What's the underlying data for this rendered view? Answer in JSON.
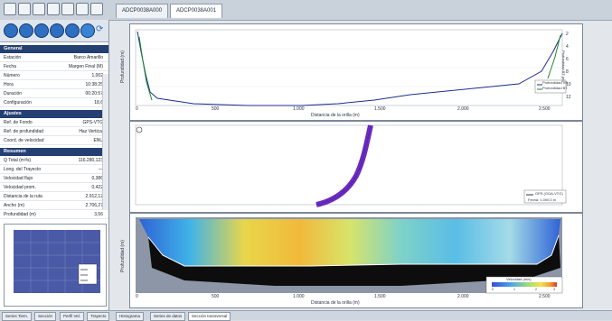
{
  "tabs": [
    {
      "label": "ADCP0038A000"
    },
    {
      "label": "ADCP0038A001"
    }
  ],
  "sidebar": {
    "sections": [
      {
        "title": "General",
        "rows": [
          {
            "k": "Estación",
            "v": "Barco Amarillo"
          },
          {
            "k": "Fecha",
            "v": "Margen Final (M)"
          },
          {
            "k": "Número",
            "v": "1,002"
          },
          {
            "k": "Hora",
            "v": "10:38:25"
          },
          {
            "k": "Duración",
            "v": "00:20:57"
          },
          {
            "k": "Configuración",
            "v": "18,6"
          }
        ]
      },
      {
        "title": "Ajustes",
        "rows": [
          {
            "k": "Ref. de Fondo",
            "v": "GPS-VTG"
          },
          {
            "k": "Ref. de profundidad",
            "v": "Haz Vertical"
          },
          {
            "k": "Coord. de velocidad",
            "v": "ENU"
          }
        ]
      },
      {
        "title": "Resumen",
        "rows": [
          {
            "k": "Q Total (m³/s)",
            "v": "116.280,123"
          },
          {
            "k": "Long. del Trayecto",
            "v": "—"
          },
          {
            "k": "Velocidad flujo",
            "v": "0,386"
          },
          {
            "k": "Velocidad prom.",
            "v": "0,422"
          },
          {
            "k": "Distancia de la ruta",
            "v": "2.912,12"
          },
          {
            "k": "Ancho (m)",
            "v": "2.706,27"
          },
          {
            "k": "Profundidad (m)",
            "v": "3,56"
          }
        ]
      }
    ]
  },
  "minimap": {
    "legend_text": "—"
  },
  "plot1": {
    "xlabel": "Distancia de la orilla (m)",
    "ylabel": "Profundidad (m)",
    "ylabel_right": "Profundidad BT (m)",
    "legend": [
      "Profundidad VB",
      "Profundidad BT"
    ],
    "xticks": [
      "0",
      "500",
      "1.000",
      "1.500",
      "2.000",
      "2.500"
    ],
    "yticks_right": [
      "2",
      "4",
      "6",
      "8",
      "10",
      "12"
    ]
  },
  "plot2": {
    "legend": [
      "GPS (GGA-VTG)"
    ],
    "footnote": "Fecha: 1.000,0 m"
  },
  "plot3": {
    "xlabel": "Distancia de la orilla (m)",
    "ylabel": "Profundidad (m)",
    "xticks": [
      "0",
      "500",
      "1.000",
      "1.500",
      "2.000",
      "2.500"
    ],
    "colorbar_title": "Velocidad (m/s)",
    "colorbar_ticks": [
      "0",
      "1",
      "2",
      "3"
    ],
    "colors": [
      "#3a4bd8",
      "#49a6e6",
      "#9bdc7a",
      "#f2e24c",
      "#f19a2b",
      "#d93a2b"
    ]
  },
  "statusbar": {
    "tabs": [
      "Series Tiem.",
      "Sección",
      "Perfil Vel.",
      "Trayecto",
      "Histograma",
      "Series de datos",
      "Sección transversal"
    ]
  }
}
